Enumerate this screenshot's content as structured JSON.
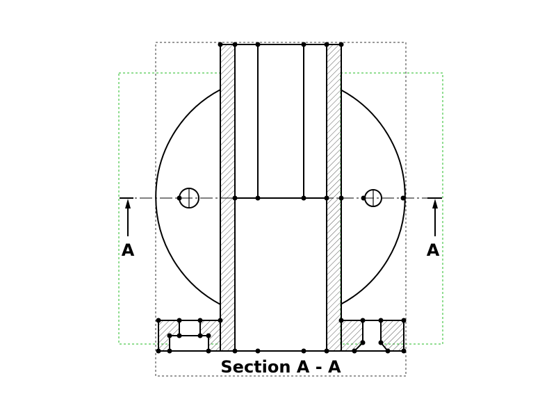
{
  "labels": {
    "section_title": "Section A - A",
    "cut_left": "A",
    "cut_right": "A"
  },
  "colors": {
    "line": "#000000",
    "hatch": "#555555",
    "view_frame": "#333333",
    "projection_frame": "#22bb22"
  }
}
